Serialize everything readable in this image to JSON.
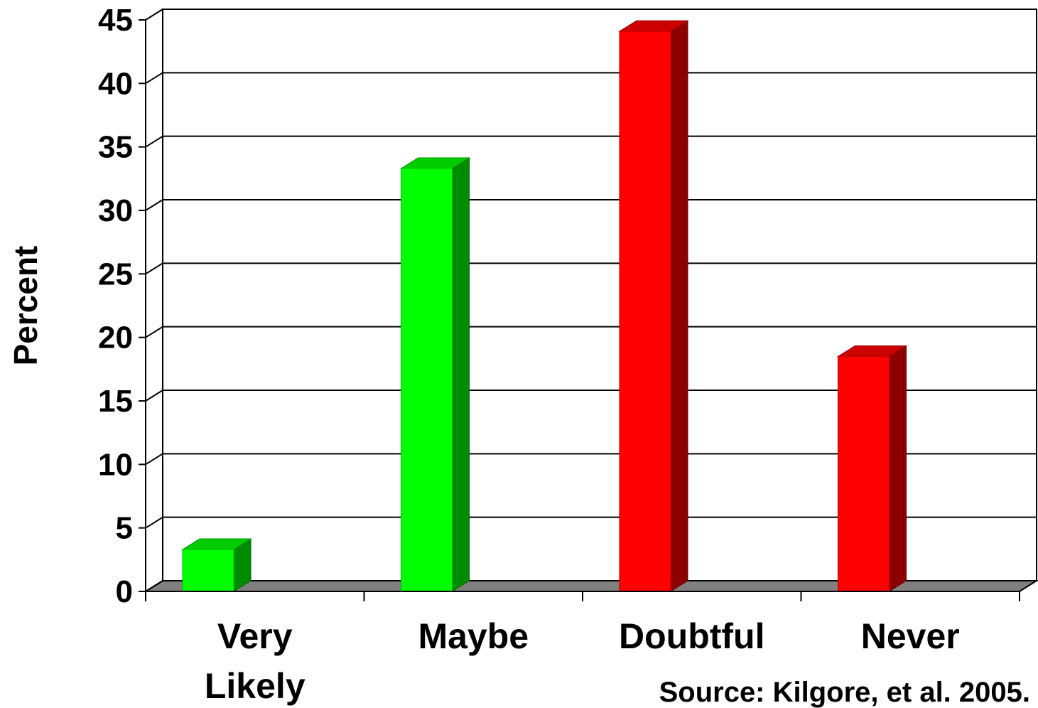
{
  "chart_data": {
    "type": "bar",
    "categories": [
      "Very Likely",
      "Maybe",
      "Doubtful",
      "Never"
    ],
    "category_lines": [
      [
        "Very",
        "Likely"
      ],
      [
        "Maybe"
      ],
      [
        "Doubtful"
      ],
      [
        "Never"
      ]
    ],
    "values": [
      3.3,
      33.3,
      44.1,
      18.5
    ],
    "bar_colors": [
      "#00ff00",
      "#00ff00",
      "#ff0000",
      "#ff0000"
    ],
    "ylabel": "Percent",
    "xlabel": "",
    "title": "",
    "ylim": [
      0,
      45
    ],
    "yticks": [
      "0",
      "5",
      "10",
      "15",
      "20",
      "25",
      "30",
      "35",
      "40",
      "45"
    ],
    "grid": true,
    "three_d": true,
    "floor_color": "#808080",
    "source": "Source: Kilgore, et al. 2005."
  }
}
